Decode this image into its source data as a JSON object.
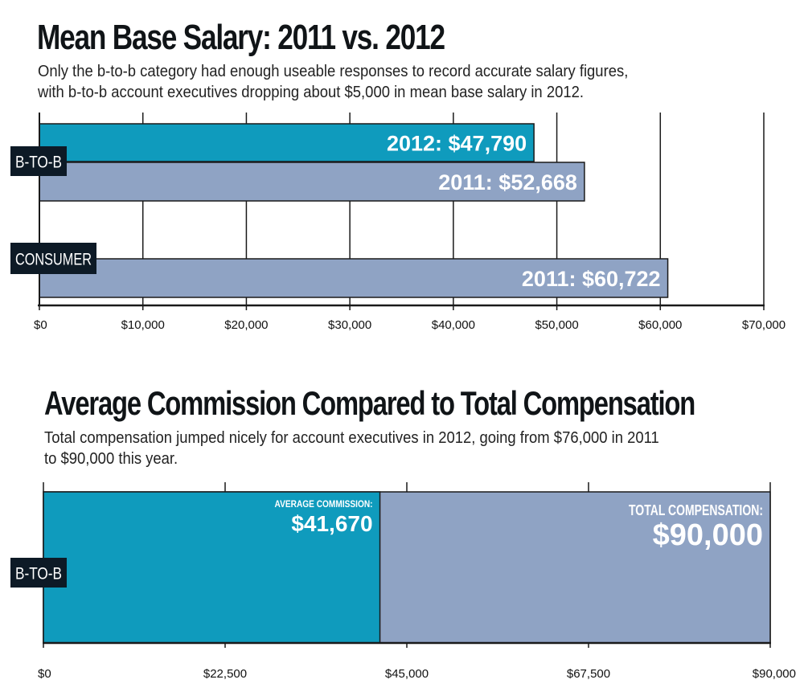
{
  "chart_data": [
    {
      "type": "bar",
      "orientation": "horizontal",
      "title": "Mean Base Salary: 2011 vs. 2012",
      "subtitle": "Only the b-to-b category had enough useable responses to record accurate salary figures,\nwith b-to-b account executives dropping about $5,000 in mean base salary in 2012.",
      "categories": [
        "B-TO-B",
        "CONSUMER"
      ],
      "bars": [
        {
          "category": "B-TO-B",
          "series": "2012",
          "value": 47790,
          "label": "2012: $47,790"
        },
        {
          "category": "B-TO-B",
          "series": "2011",
          "value": 52668,
          "label": "2011: $52,668"
        },
        {
          "category": "CONSUMER",
          "series": "2011",
          "value": 60722,
          "label": "2011: $60,722"
        }
      ],
      "xlim": [
        0,
        70000
      ],
      "ticks": [
        0,
        10000,
        20000,
        30000,
        40000,
        50000,
        60000,
        70000
      ],
      "tick_labels": [
        "$0",
        "$10,000",
        "$20,000",
        "$30,000",
        "$40,000",
        "$50,000",
        "$60,000",
        "$70,000"
      ],
      "grid": true,
      "colors": {
        "2012": "#0f9bbd",
        "2011": "#8fa3c4"
      }
    },
    {
      "type": "bar",
      "orientation": "horizontal",
      "title": "Average Commission Compared to Total Compensation",
      "subtitle": "Total compensation jumped nicely for account executives in 2012, going from $76,000 in 2011\nto $90,000 this year.",
      "categories": [
        "B-TO-B"
      ],
      "bars": [
        {
          "category": "B-TO-B",
          "series": "AVERAGE COMMISSION",
          "value": 41670,
          "label_title": "AVERAGE COMMISSION:",
          "label_value": "$41,670"
        },
        {
          "category": "B-TO-B",
          "series": "TOTAL COMPENSATION",
          "value": 90000,
          "label_title": "TOTAL COMPENSATION:",
          "label_value": "$90,000"
        }
      ],
      "xlim": [
        0,
        90000
      ],
      "ticks": [
        0,
        22500,
        45000,
        67500,
        90000
      ],
      "tick_labels": [
        "$0",
        "$22,500",
        "$45,000",
        "$67,500",
        "$90,000"
      ],
      "grid": true,
      "colors": {
        "AVERAGE COMMISSION": "#0f9bbd",
        "TOTAL COMPENSATION": "#8fa3c4"
      }
    }
  ],
  "colors": {
    "label_box": "#0d1a26",
    "text": "#101417"
  }
}
